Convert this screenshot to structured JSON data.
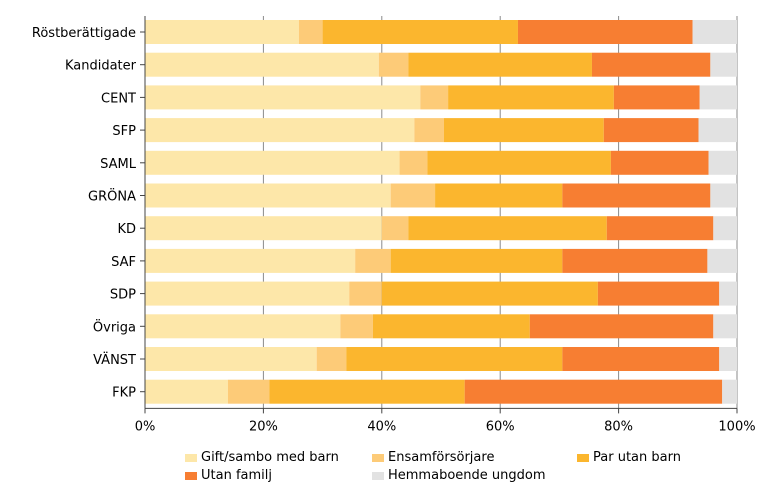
{
  "chart_data": {
    "type": "bar",
    "orientation": "horizontal",
    "stacked": true,
    "categories": [
      "Röstberättigade",
      "Kandidater",
      "CENT",
      "SFP",
      "SAML",
      "GRÖNA",
      "KD",
      "SAF",
      "SDP",
      "Övriga",
      "VÄNST",
      "FKP"
    ],
    "series": [
      {
        "name": "Gift/sambo med barn",
        "color": "#fde7a9",
        "values": [
          26.0,
          39.5,
          46.5,
          45.5,
          43.0,
          41.5,
          40.0,
          35.5,
          34.5,
          33.0,
          29.0,
          14.0
        ]
      },
      {
        "name": "Ensamförsörjare",
        "color": "#fdcb78",
        "values": [
          4.0,
          5.0,
          4.7,
          5.0,
          4.7,
          7.5,
          4.5,
          6.0,
          5.5,
          5.5,
          5.0,
          7.0
        ]
      },
      {
        "name": "Par utan barn",
        "color": "#fbb62e",
        "values": [
          33.0,
          31.0,
          28.0,
          27.0,
          31.0,
          21.5,
          33.5,
          29.0,
          36.5,
          26.5,
          36.5,
          33.0
        ]
      },
      {
        "name": "Utan familj",
        "color": "#f77e32",
        "values": [
          29.5,
          20.0,
          14.5,
          16.0,
          16.5,
          25.0,
          18.0,
          24.5,
          20.5,
          31.0,
          26.5,
          43.5
        ]
      },
      {
        "name": "Hemmaboende ungdom",
        "color": "#e2e2e2",
        "values": [
          7.5,
          4.5,
          6.3,
          6.5,
          4.8,
          4.5,
          4.0,
          5.0,
          3.0,
          4.0,
          3.0,
          2.5
        ]
      }
    ],
    "xlim": [
      0,
      100
    ],
    "ticks": [
      "0%",
      "20%",
      "40%",
      "60%",
      "80%",
      "100%"
    ],
    "grid": true,
    "legend": "bottom"
  }
}
